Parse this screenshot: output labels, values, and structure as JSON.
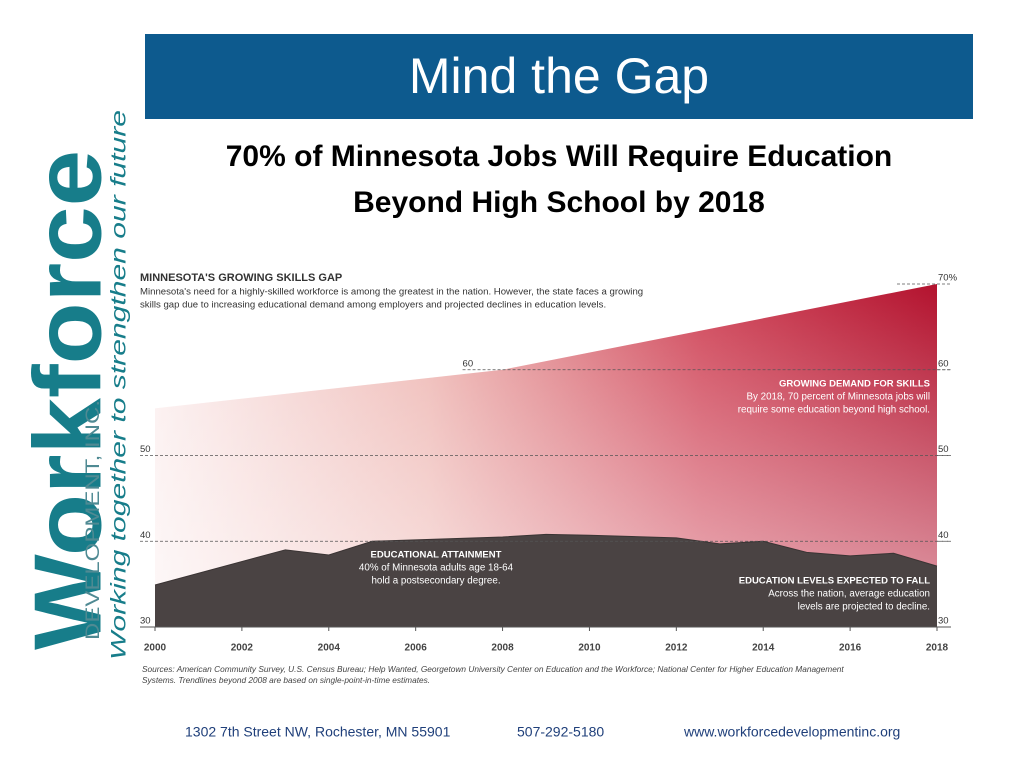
{
  "header": {
    "title": "Mind the Gap"
  },
  "subtitle": [
    "70% of Minnesota Jobs Will Require Education",
    "Beyond High School by 2018"
  ],
  "logo": {
    "name": "Workforce",
    "company": "DEVELOPMENT, INC.",
    "tagline": "Working together to strengthen our future"
  },
  "chart_data": {
    "type": "area",
    "title": "MINNESOTA'S GROWING SKILLS GAP",
    "description": [
      "Minnesota's need for a highly-skilled workforce is among the greatest in the nation.  However, the state faces a growing",
      "skills gap due to increasing educational demand among employers and projected declines in education levels."
    ],
    "series": [
      {
        "name": "GROWING DEMAND FOR SKILLS",
        "color": "#b3122e",
        "note": [
          "By 2018, 70 percent of Minnesota jobs will",
          "require some education beyond high school."
        ],
        "x": [
          2000,
          2008,
          2018
        ],
        "values": [
          55.5,
          60,
          70
        ]
      },
      {
        "name": "EDUCATIONAL ATTAINMENT",
        "color": "#4a4343",
        "note": [
          "40% of Minnesota adults age 18-64",
          "hold a postsecondary degree."
        ],
        "x": [
          2000,
          2003,
          2004,
          2005,
          2008,
          2009,
          2010,
          2012,
          2013,
          2014,
          2015,
          2016,
          2017,
          2018
        ],
        "values": [
          34.9,
          39,
          38.4,
          40,
          40.5,
          40.8,
          40.7,
          40.4,
          39.7,
          40,
          38.7,
          38.3,
          38.6,
          37.1
        ]
      }
    ],
    "annotations": [
      {
        "title": "EDUCATION LEVELS EXPECTED TO FALL",
        "lines": [
          "Across the nation, average education",
          "levels are projected to decline."
        ]
      }
    ],
    "xlim": [
      2000,
      2018
    ],
    "xticks": [
      2000,
      2002,
      2004,
      2006,
      2008,
      2010,
      2012,
      2014,
      2016,
      2018
    ],
    "ylim": [
      30,
      70
    ],
    "yticks": [
      30,
      40,
      50,
      60
    ],
    "y2lim": [
      30,
      70
    ],
    "y2ticks": [
      30,
      40,
      50,
      60,
      {
        "value": 70,
        "label": "70%"
      }
    ],
    "grid": true,
    "sources": [
      "Sources: American Community Survey, U.S. Census Bureau; Help Wanted, Georgetown University Center on Education and the Workforce; National Center for Higher Education Management",
      "Systems. Trendlines beyond 2008 are based on single-point-in-time estimates."
    ]
  },
  "footer": {
    "address": "1302 7th Street NW, Rochester, MN 55901",
    "phone": "507-292-5180",
    "url": "www.workforcedevelopmentinc.org"
  }
}
